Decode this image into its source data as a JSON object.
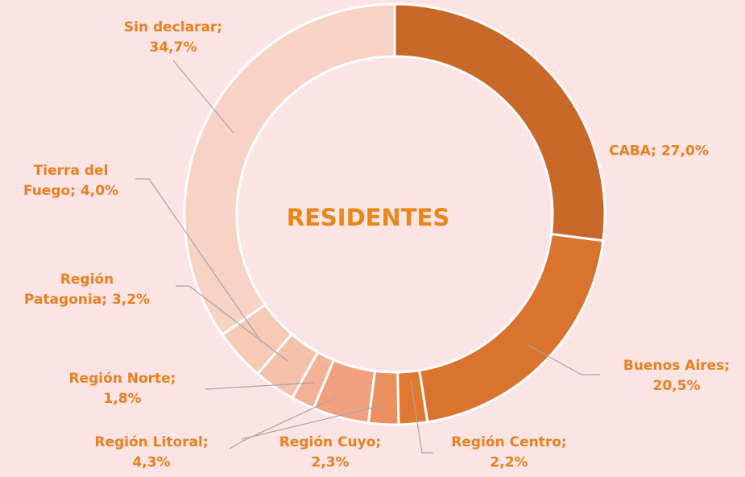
{
  "chart_data": {
    "type": "donut",
    "title": "RESIDENTES",
    "categories": [
      "CABA",
      "Buenos Aires",
      "Región Centro",
      "Región Cuyo",
      "Región Litoral",
      "Región Norte",
      "Región Patagonia",
      "Tierra del Fuego",
      "Sin declarar"
    ],
    "values": [
      27.0,
      20.5,
      2.2,
      2.3,
      4.3,
      1.8,
      3.2,
      4.0,
      34.7
    ],
    "value_labels": [
      "27,0%",
      "20,5%",
      "2,2%",
      "2,3%",
      "4,3%",
      "1,8%",
      "3,2%",
      "4,0%",
      "34,7%"
    ],
    "label_separator": "; ",
    "colors": [
      "#c8692a",
      "#d9732e",
      "#e2772f",
      "#ec8f5e",
      "#f0a07e",
      "#f3b196",
      "#f5c1aa",
      "#f7cab7",
      "#f8d3c5"
    ]
  }
}
